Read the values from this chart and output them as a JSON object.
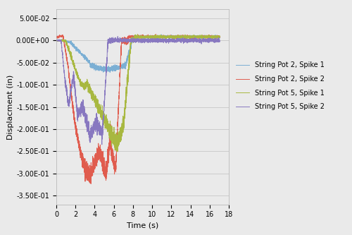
{
  "title": "",
  "xlabel": "Time (s)",
  "ylabel": "Displacment (in)",
  "xlim": [
    0,
    18
  ],
  "ylim": [
    -0.37,
    0.07
  ],
  "yticks": [
    0.05,
    0.0,
    -0.05,
    -0.1,
    -0.15,
    -0.2,
    -0.25,
    -0.3,
    -0.35
  ],
  "xticks": [
    0,
    2,
    4,
    6,
    8,
    10,
    12,
    14,
    16,
    18
  ],
  "legend": [
    "String Pot 2, Spike 1",
    "String Pot 2, Spike 2",
    "String Pot 5, Spike 1",
    "String Pot 5, Spike 2"
  ],
  "colors": [
    "#7bafd4",
    "#e05c4e",
    "#a8b840",
    "#8878c0"
  ],
  "background_color": "#eaeaea",
  "linewidth": 0.7
}
